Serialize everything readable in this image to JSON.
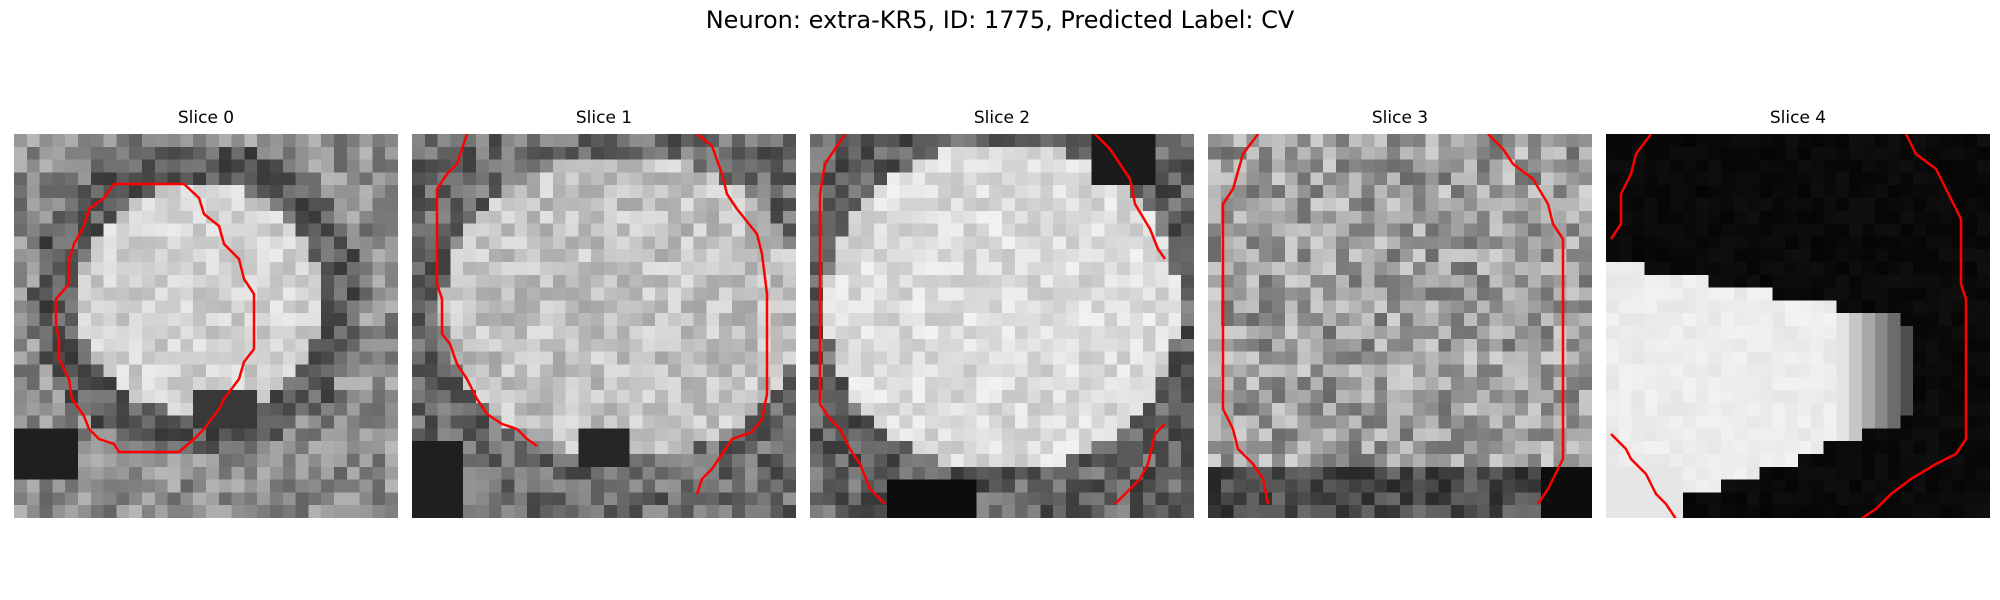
{
  "figure": {
    "title": "Neuron: extra-KR5, ID: 1775, Predicted Label: CV"
  },
  "panels": [
    {
      "title": "Slice 0",
      "description": "grayscale EM-like patch with a bright rounded cell outlined by a closed red contour"
    },
    {
      "title": "Slice 1",
      "description": "grayscale textured patch with red contour lines along the left and right edges"
    },
    {
      "title": "Slice 2",
      "description": "bright textured blob with red contour segments near the edges"
    },
    {
      "title": "Slice 3",
      "description": "grayscale noisy patch with long red vertical contours on both sides"
    },
    {
      "title": "Slice 4",
      "description": "mostly black image with a bright wedge shape on the left and red contours at the sides"
    }
  ],
  "colors": {
    "contour": "#ff0000"
  }
}
